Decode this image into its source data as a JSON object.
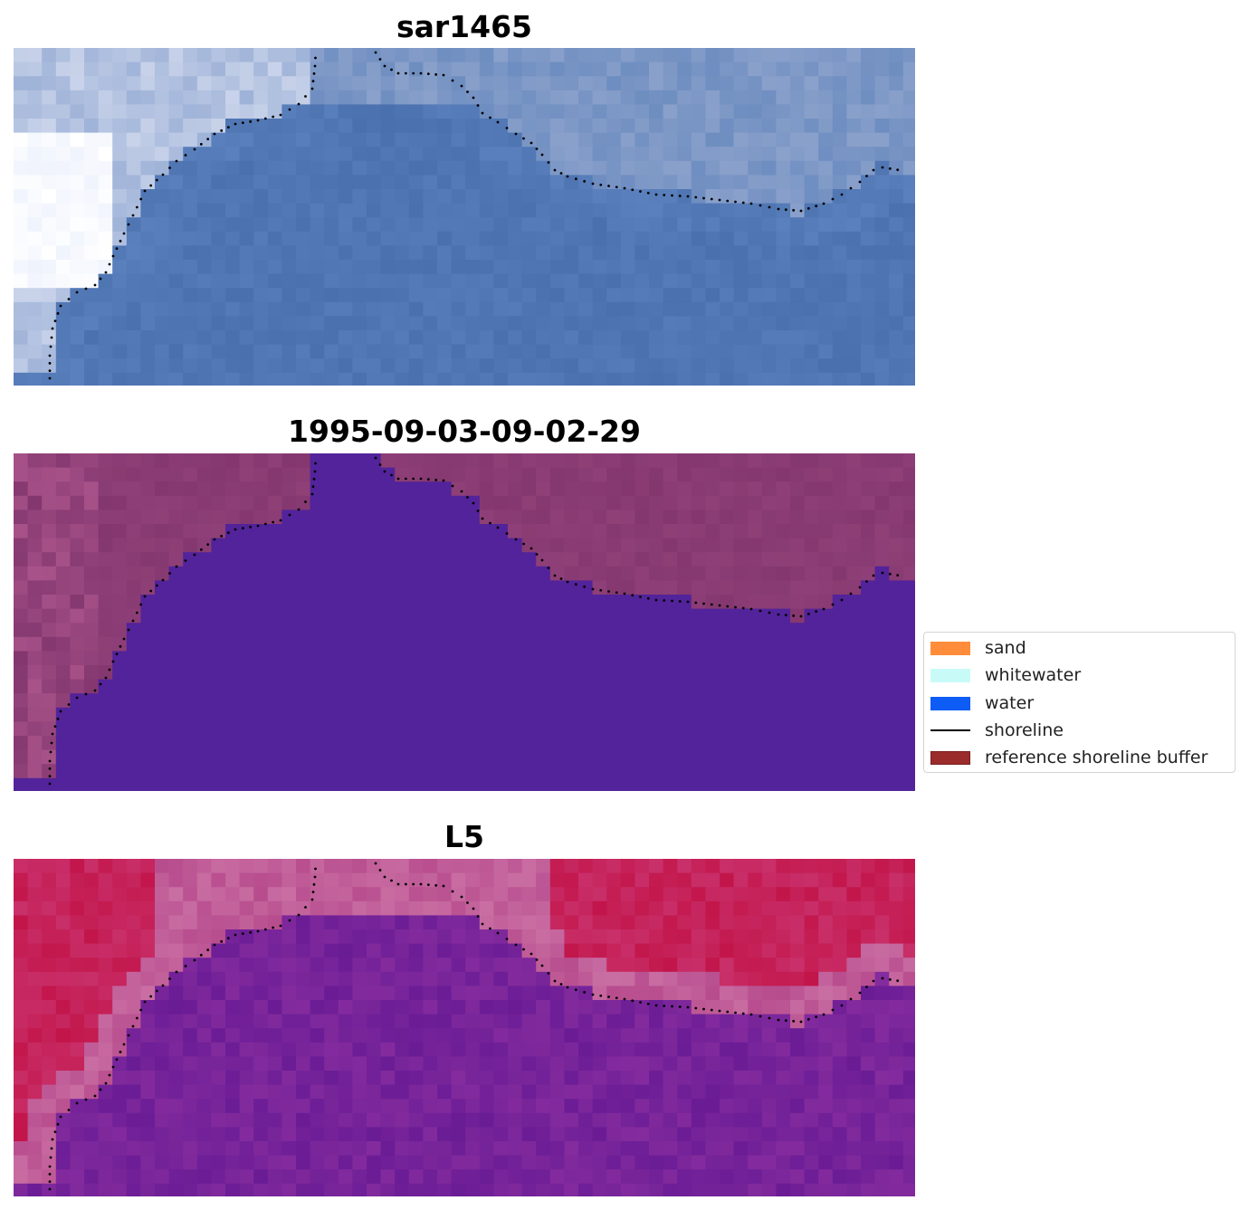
{
  "panels": [
    {
      "title": "sar1465",
      "style": "rgb"
    },
    {
      "title": "1995-09-03-09-02-29",
      "style": "classification"
    },
    {
      "title": "L5",
      "style": "index"
    }
  ],
  "legend": {
    "items": [
      {
        "label": "sand",
        "kind": "patch",
        "color": "#ff8c3a"
      },
      {
        "label": "whitewater",
        "kind": "patch",
        "color": "#c8fbf8"
      },
      {
        "label": "water",
        "kind": "patch",
        "color": "#0c5cf5"
      },
      {
        "label": "shoreline",
        "kind": "line",
        "color": "#000000"
      },
      {
        "label": "reference shoreline buffer",
        "kind": "patch",
        "color": "#9b2c2c"
      }
    ]
  },
  "colors": {
    "sar_water": "#4a70ad",
    "sar_foam": "#ffffff",
    "class_water": "#52239a",
    "class_land": "#84376f",
    "index_water": "#6a1c95",
    "index_land": "#c2154a"
  }
}
